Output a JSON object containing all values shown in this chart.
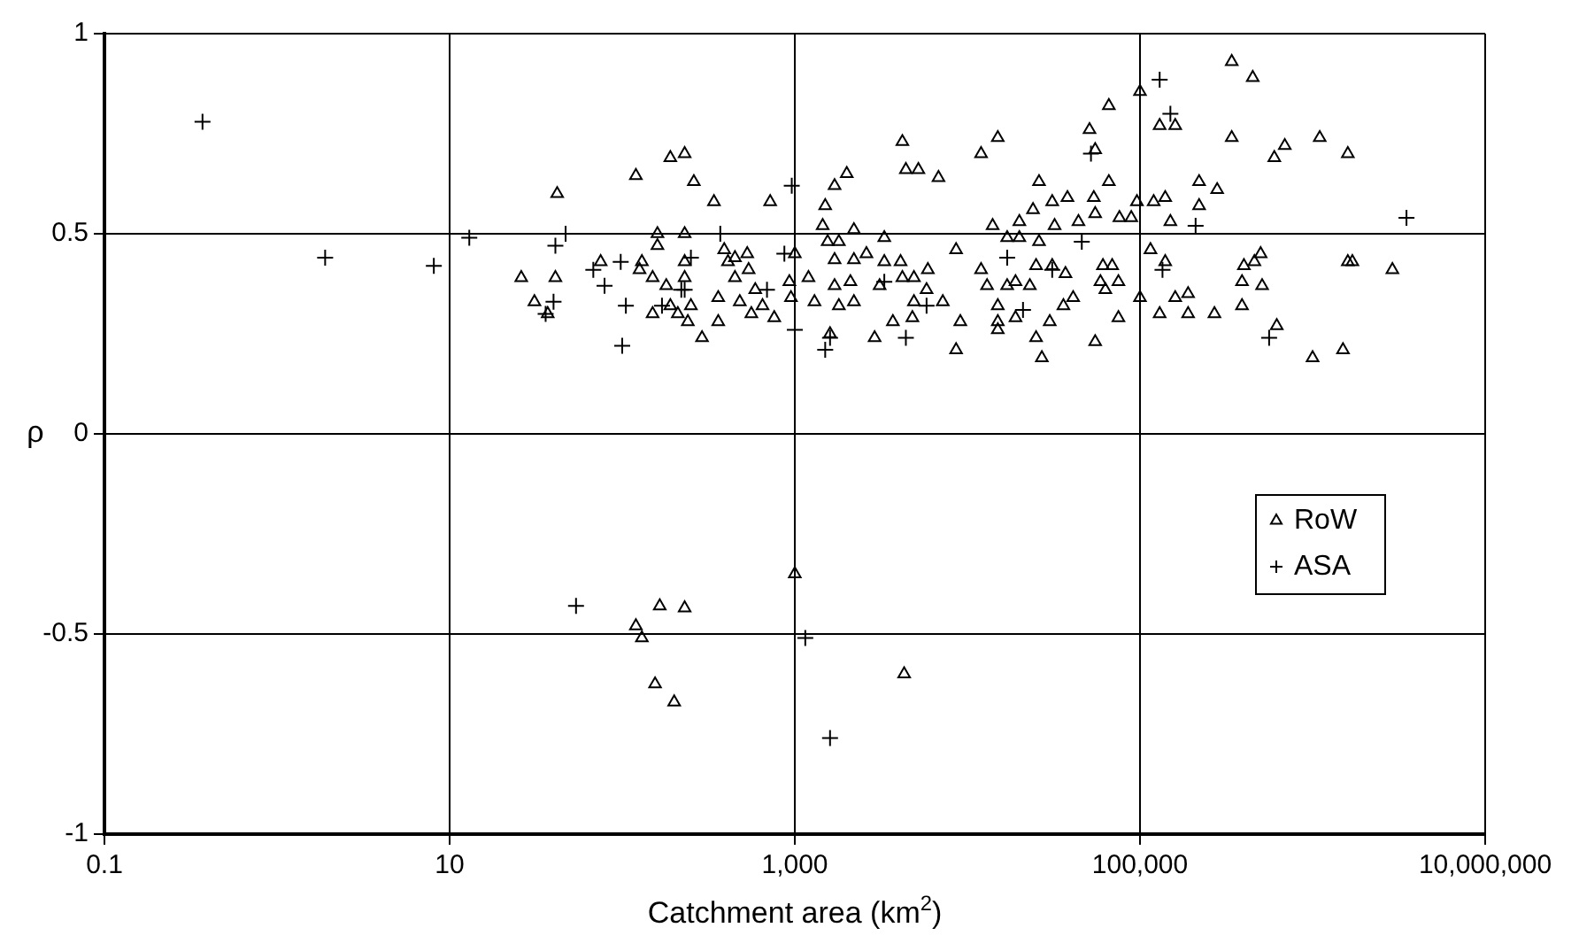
{
  "chart_data": {
    "type": "scatter",
    "xlabel": "Catchment area (km$^{2}$)",
    "ylabel": "ρ",
    "log": "x",
    "grid": true,
    "legend": "right",
    "xlim": [
      0.1,
      10000000
    ],
    "ylim": [
      -1,
      1
    ],
    "xticks": [
      0.1,
      10,
      {
        "value": 1000,
        "label": "1,000"
      },
      {
        "value": 100000,
        "label": "100,000"
      },
      {
        "value": 10000000,
        "label": "10,000,000"
      }
    ],
    "yticks": [
      -1,
      -0.5,
      0,
      0.5,
      1
    ],
    "series": [
      {
        "name": "RoW",
        "color": "#000000",
        "marker": "triangle",
        "x": [
          42,
          26,
          41,
          31,
          37,
          75,
          130,
          126,
          150,
          120,
          190,
          230,
          260,
          340,
          720,
          160,
          230,
          160,
          230,
          230,
          180,
          190,
          150,
          210,
          240,
          290,
          250,
          360,
          360,
          390,
          410,
          450,
          530,
          540,
          450,
          480,
          560,
          590,
          650,
          760,
          930,
          1000,
          950,
          1200,
          1300,
          1500,
          1450,
          1700,
          2000,
          1550,
          1800,
          2200,
          1700,
          2200,
          1700,
          2100,
          1800,
          2200,
          1600,
          2600,
          3300,
          3300,
          4100,
          4200,
          4900,
          5900,
          5800,
          3100,
          4900,
          7200,
          4800,
          3700,
          2900,
          9100,
          8600,
          8600,
          4200,
          4400,
          5200,
          6800,
          12000,
          15000,
          12000,
          13000,
          17000,
          19000,
          23000,
          15000,
          15000,
          15000,
          19000,
          14000,
          17000,
          20000,
          20000,
          26000,
          24000,
          26000,
          31000,
          38000,
          32000,
          25000,
          31000,
          37000,
          41000,
          36000,
          30000,
          25000,
          27000,
          55000,
          51000,
          66000,
          55000,
          66000,
          54000,
          55000,
          44000,
          76000,
          89000,
          96000,
          120000,
          140000,
          100000,
          130000,
          160000,
          150000,
          61000,
          69000,
          59000,
          75000,
          63000,
          75000,
          100000,
          115000,
          140000,
          130000,
          160000,
          190000,
          190000,
          220000,
          280000,
          220000,
          270000,
          340000,
          450000,
          340000,
          690000,
          600000,
          1100000,
          1600000,
          400000,
          460000,
          500000,
          390000,
          510000,
          390000,
          620000,
          1000000,
          1500000,
          1600000,
          1700000,
          2900000,
          120,
          130,
          165,
          230,
          155,
          200,
          1000,
          4300
        ],
        "values": [
          0.6,
          0.39,
          0.39,
          0.33,
          0.3,
          0.43,
          0.43,
          0.41,
          0.39,
          0.645,
          0.69,
          0.7,
          0.63,
          0.58,
          0.58,
          0.5,
          0.5,
          0.47,
          0.43,
          0.39,
          0.37,
          0.32,
          0.3,
          0.3,
          0.28,
          0.24,
          0.32,
          0.34,
          0.28,
          0.46,
          0.43,
          0.44,
          0.45,
          0.41,
          0.39,
          0.33,
          0.3,
          0.36,
          0.32,
          0.29,
          0.38,
          0.45,
          0.34,
          0.39,
          0.33,
          0.57,
          0.52,
          0.62,
          0.65,
          0.48,
          0.48,
          0.51,
          0.435,
          0.435,
          0.37,
          0.38,
          0.32,
          0.33,
          0.25,
          0.45,
          0.49,
          0.43,
          0.43,
          0.39,
          0.39,
          0.41,
          0.36,
          0.37,
          0.33,
          0.33,
          0.29,
          0.28,
          0.24,
          0.28,
          0.21,
          0.46,
          0.73,
          0.66,
          0.66,
          0.64,
          0.7,
          0.74,
          0.41,
          0.37,
          0.37,
          0.38,
          0.37,
          0.32,
          0.28,
          0.26,
          0.29,
          0.52,
          0.49,
          0.49,
          0.53,
          0.48,
          0.56,
          0.63,
          0.58,
          0.59,
          0.52,
          0.42,
          0.42,
          0.4,
          0.34,
          0.32,
          0.28,
          0.24,
          0.19,
          0.23,
          0.76,
          0.82,
          0.71,
          0.63,
          0.59,
          0.55,
          0.53,
          0.54,
          0.54,
          0.58,
          0.58,
          0.59,
          0.855,
          0.77,
          0.77,
          0.53,
          0.42,
          0.42,
          0.38,
          0.38,
          0.36,
          0.29,
          0.34,
          0.46,
          0.43,
          0.3,
          0.34,
          0.35,
          0.3,
          0.63,
          0.61,
          0.57,
          0.3,
          0.93,
          0.89,
          0.74,
          0.72,
          0.69,
          0.74,
          0.7,
          0.42,
          0.43,
          0.45,
          0.38,
          0.37,
          0.32,
          0.27,
          0.19,
          0.21,
          0.43,
          0.43,
          0.41,
          -0.48,
          -0.51,
          -0.43,
          -0.435,
          -0.625,
          -0.67,
          -0.35,
          -0.6
        ]
      },
      {
        "name": "ASA",
        "color": "#000000",
        "marker": "cross",
        "x": [
          0.37,
          1.9,
          8.1,
          13,
          41,
          47,
          40,
          36,
          68,
          79,
          98,
          105,
          100,
          170,
          220,
          250,
          230,
          370,
          690,
          870,
          960,
          1000,
          1500,
          1600,
          4400,
          5800,
          3300,
          17000,
          21000,
          31000,
          46000,
          52000,
          135000,
          130000,
          150000,
          210000,
          560000,
          3500000,
          54,
          1150,
          1600
        ],
        "values": [
          0.78,
          0.44,
          0.42,
          0.49,
          0.47,
          0.5,
          0.33,
          0.3,
          0.41,
          0.37,
          0.43,
          0.32,
          0.22,
          0.32,
          0.36,
          0.44,
          0.36,
          0.5,
          0.36,
          0.45,
          0.62,
          0.26,
          0.21,
          0.24,
          0.24,
          0.32,
          0.38,
          0.44,
          0.31,
          0.41,
          0.48,
          0.7,
          0.41,
          0.885,
          0.8,
          0.52,
          0.24,
          0.54,
          -0.43,
          -0.51,
          -0.76
        ]
      }
    ]
  }
}
